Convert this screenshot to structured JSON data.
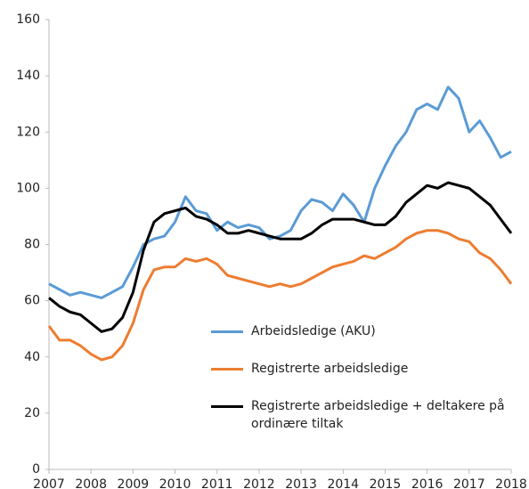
{
  "chart_data": {
    "type": "line",
    "x": [
      2007,
      2007.25,
      2007.5,
      2007.75,
      2008,
      2008.25,
      2008.5,
      2008.75,
      2009,
      2009.25,
      2009.5,
      2009.75,
      2010,
      2010.25,
      2010.5,
      2010.75,
      2011,
      2011.25,
      2011.5,
      2011.75,
      2012,
      2012.25,
      2012.5,
      2012.75,
      2013,
      2013.25,
      2013.5,
      2013.75,
      2014,
      2014.25,
      2014.5,
      2014.75,
      2015,
      2015.25,
      2015.5,
      2015.75,
      2016,
      2016.25,
      2016.5,
      2016.75,
      2017,
      2017.25,
      2017.5,
      2017.75,
      2018
    ],
    "series": [
      {
        "name": "Arbeidsledige (AKU)",
        "color": "#5b9bd5",
        "values": [
          66,
          64,
          62,
          63,
          62,
          61,
          63,
          65,
          72,
          80,
          82,
          83,
          88,
          97,
          92,
          91,
          85,
          88,
          86,
          87,
          86,
          82,
          83,
          85,
          92,
          96,
          95,
          92,
          98,
          94,
          88,
          100,
          108,
          115,
          120,
          128,
          130,
          128,
          136,
          132,
          120,
          124,
          118,
          111,
          113
        ]
      },
      {
        "name": "Registrerte arbeidsledige",
        "color": "#ed7d31",
        "values": [
          51,
          46,
          46,
          44,
          41,
          39,
          40,
          44,
          52,
          64,
          71,
          72,
          72,
          75,
          74,
          75,
          73,
          69,
          68,
          67,
          66,
          65,
          66,
          65,
          66,
          68,
          70,
          72,
          73,
          74,
          76,
          75,
          77,
          79,
          82,
          84,
          85,
          85,
          84,
          82,
          81,
          77,
          75,
          71,
          66
        ]
      },
      {
        "name": "Registrerte arbeidsledige + deltakere på ordinære tiltak",
        "color": "#000000",
        "values": [
          61,
          58,
          56,
          55,
          52,
          49,
          50,
          54,
          63,
          78,
          88,
          91,
          92,
          93,
          90,
          89,
          87,
          84,
          84,
          85,
          84,
          83,
          82,
          82,
          82,
          84,
          87,
          89,
          89,
          89,
          88,
          87,
          87,
          90,
          95,
          98,
          101,
          100,
          102,
          101,
          100,
          97,
          94,
          89,
          84
        ]
      }
    ],
    "xlim": [
      2007,
      2018
    ],
    "xticks": [
      2007,
      2008,
      2009,
      2010,
      2011,
      2012,
      2013,
      2014,
      2015,
      2016,
      2017,
      2018
    ],
    "ylim": [
      0,
      160
    ],
    "yticks": [
      0,
      20,
      40,
      60,
      80,
      100,
      120,
      140,
      160
    ],
    "grid": false,
    "legend_position": "lower right"
  }
}
